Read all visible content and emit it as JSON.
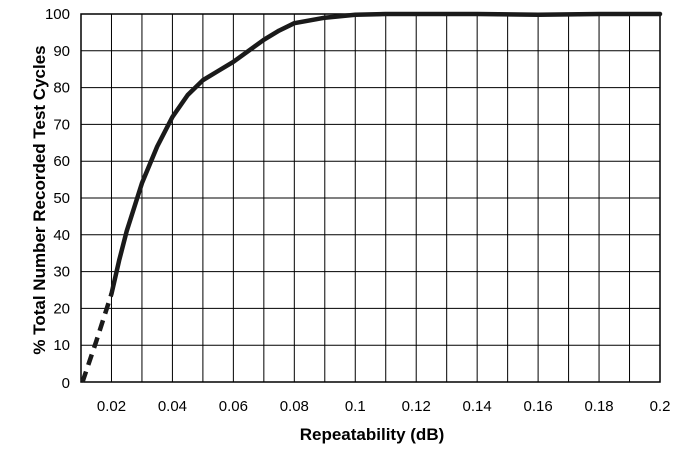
{
  "chart_data": {
    "type": "line",
    "title": "",
    "xlabel": "Repeatability (dB)",
    "ylabel": "% Total Number Recorded Test Cycles",
    "xlim": [
      0.01,
      0.2
    ],
    "ylim": [
      0,
      100
    ],
    "grid": true,
    "x_grid_step": 0.01,
    "y_grid_step": 10,
    "x_ticks": [
      0.02,
      0.04,
      0.06,
      0.08,
      0.1,
      0.12,
      0.14,
      0.16,
      0.18,
      0.2
    ],
    "x_tick_labels": [
      "0.02",
      "0.04",
      "0.06",
      "0.08",
      "0.1",
      "0.12",
      "0.14",
      "0.16",
      "0.18",
      "0.2"
    ],
    "y_ticks": [
      0,
      10,
      20,
      30,
      40,
      50,
      60,
      70,
      80,
      90,
      100
    ],
    "y_tick_labels": [
      "0",
      "10",
      "20",
      "30",
      "40",
      "50",
      "60",
      "70",
      "80",
      "90",
      "100"
    ],
    "line_color": "#1a1a1a",
    "grid_color": "#000000",
    "series": [
      {
        "style": "solid",
        "x": [
          0.02,
          0.0225,
          0.025,
          0.03,
          0.035,
          0.04,
          0.045,
          0.05,
          0.055,
          0.06,
          0.065,
          0.07,
          0.075,
          0.08,
          0.09,
          0.1,
          0.11,
          0.12,
          0.14,
          0.16,
          0.18,
          0.2
        ],
        "y": [
          24,
          33,
          41,
          54,
          64,
          72,
          78,
          82,
          84.5,
          87,
          90,
          93,
          95.5,
          97.5,
          99,
          99.8,
          100,
          100,
          100,
          99.8,
          100,
          100
        ]
      },
      {
        "style": "dashed",
        "x": [
          0.0105,
          0.015,
          0.02
        ],
        "y": [
          0,
          11,
          24
        ]
      }
    ]
  }
}
